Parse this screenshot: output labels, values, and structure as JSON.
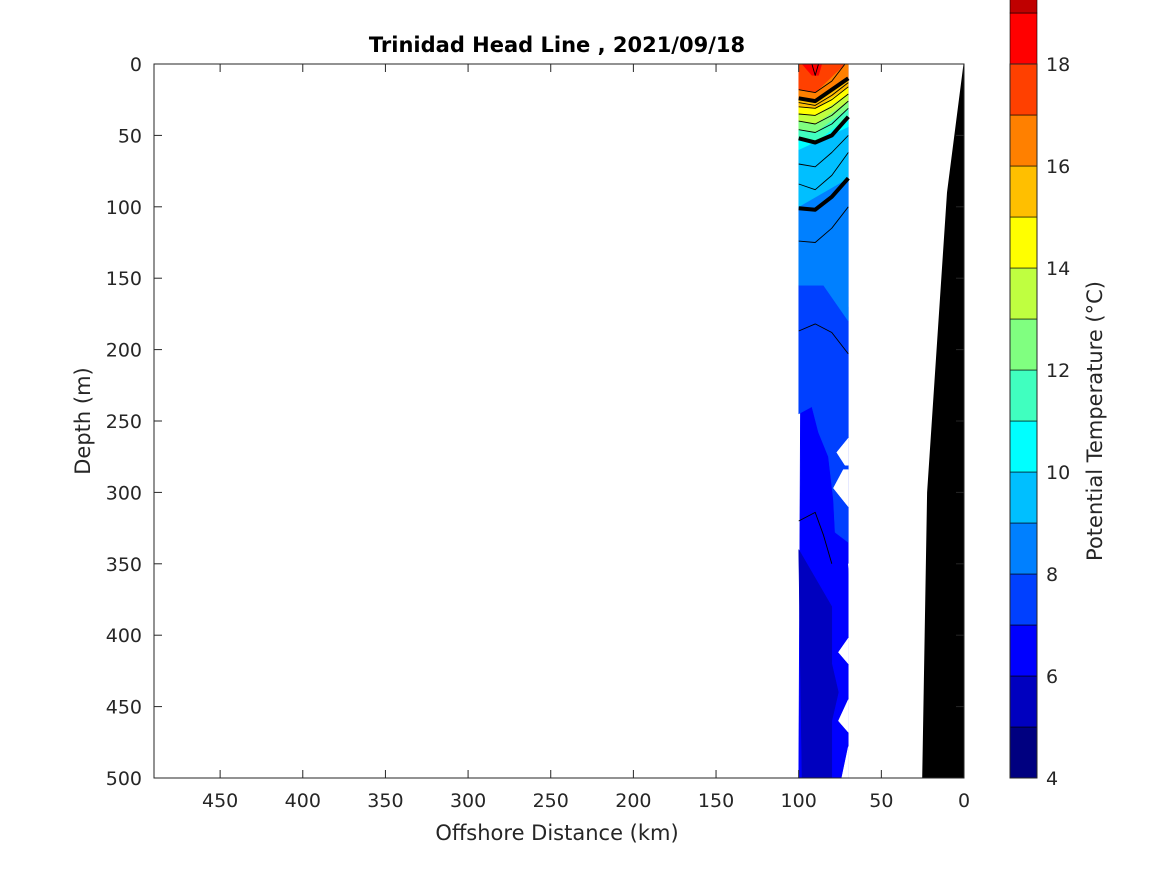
{
  "chart_data": {
    "type": "contour",
    "title": "Trinidad Head Line , 2021/09/18",
    "xlabel": "Offshore Distance (km)",
    "ylabel": "Depth (m)",
    "colorbar_label": "Potential Temperature (°C)",
    "xlim": [
      490,
      0
    ],
    "ylim": [
      0,
      500
    ],
    "x_reversed": true,
    "y_reversed": true,
    "x_ticks": [
      "450",
      "400",
      "350",
      "300",
      "250",
      "200",
      "150",
      "100",
      "50",
      "0"
    ],
    "y_ticks": [
      "0",
      "50",
      "100",
      "150",
      "200",
      "250",
      "300",
      "350",
      "400",
      "450",
      "500"
    ],
    "colorbar": {
      "clim": [
        4,
        18
      ],
      "step": 1,
      "ticks": [
        "4",
        "6",
        "8",
        "10",
        "12",
        "14",
        "16",
        "18"
      ],
      "colors": [
        "#000080",
        "#0000bf",
        "#0000ff",
        "#0040ff",
        "#0080ff",
        "#00bfff",
        "#00ffff",
        "#40ffbf",
        "#80ff80",
        "#bfff40",
        "#ffff00",
        "#ffbf00",
        "#ff8000",
        "#ff4000",
        "#ff0000",
        "#bf0000"
      ]
    },
    "layers": [
      {
        "range": [
          6,
          7
        ],
        "color": "#0000ff",
        "boundary": [
          [
            100,
            500
          ],
          [
            98,
            0
          ],
          [
            70,
            0
          ],
          [
            70,
            500
          ]
        ]
      },
      {
        "range": [
          5,
          6
        ],
        "color": "#0000bf",
        "boundary": [
          [
            100,
            340
          ],
          [
            98,
            500
          ],
          [
            80,
            500
          ],
          [
            80,
            460
          ],
          [
            76,
            440
          ],
          [
            80,
            420
          ],
          [
            80,
            380
          ]
        ]
      },
      {
        "range": [
          7,
          8
        ],
        "color": "#0040ff",
        "boundary": [
          [
            100,
            245
          ],
          [
            92,
            240
          ],
          [
            88,
            258
          ],
          [
            82,
            275
          ],
          [
            79,
            305
          ],
          [
            78,
            328
          ],
          [
            70,
            335
          ],
          [
            70,
            170
          ],
          [
            85,
            155
          ],
          [
            100,
            155
          ]
        ]
      },
      {
        "range": [
          8,
          9
        ],
        "color": "#0080ff",
        "boundary": [
          [
            100,
            155
          ],
          [
            100,
            100
          ],
          [
            70,
            80
          ],
          [
            70,
            180
          ],
          [
            85,
            155
          ]
        ]
      },
      {
        "range": [
          9,
          10
        ],
        "color": "#00bfff",
        "boundary": [
          [
            100,
            100
          ],
          [
            100,
            60
          ],
          [
            70,
            44
          ],
          [
            70,
            80
          ]
        ]
      },
      {
        "range": [
          10,
          11
        ],
        "color": "#00ffff",
        "boundary": [
          [
            100,
            60
          ],
          [
            100,
            52
          ],
          [
            90,
            55
          ],
          [
            70,
            37
          ],
          [
            70,
            44
          ]
        ]
      },
      {
        "range": [
          11,
          12
        ],
        "color": "#40ffbf",
        "boundary": [
          [
            100,
            52
          ],
          [
            100,
            46
          ],
          [
            90,
            48
          ],
          [
            70,
            31
          ],
          [
            70,
            37
          ],
          [
            90,
            55
          ]
        ]
      },
      {
        "range": [
          12,
          13
        ],
        "color": "#80ff80",
        "boundary": [
          [
            100,
            46
          ],
          [
            100,
            40
          ],
          [
            90,
            42
          ],
          [
            70,
            26
          ],
          [
            70,
            31
          ],
          [
            90,
            48
          ]
        ]
      },
      {
        "range": [
          13,
          14
        ],
        "color": "#bfff40",
        "boundary": [
          [
            100,
            40
          ],
          [
            100,
            35
          ],
          [
            90,
            36
          ],
          [
            70,
            21
          ],
          [
            70,
            26
          ],
          [
            90,
            42
          ]
        ]
      },
      {
        "range": [
          14,
          15
        ],
        "color": "#ffff00",
        "boundary": [
          [
            100,
            35
          ],
          [
            100,
            30
          ],
          [
            90,
            31
          ],
          [
            70,
            16
          ],
          [
            70,
            21
          ],
          [
            90,
            36
          ]
        ]
      },
      {
        "range": [
          15,
          16
        ],
        "color": "#ffbf00",
        "boundary": [
          [
            100,
            30
          ],
          [
            100,
            24
          ],
          [
            90,
            26
          ],
          [
            70,
            10
          ],
          [
            70,
            16
          ],
          [
            90,
            31
          ]
        ]
      },
      {
        "range": [
          16,
          17
        ],
        "color": "#ff8000",
        "boundary": [
          [
            100,
            24
          ],
          [
            100,
            18
          ],
          [
            90,
            20
          ],
          [
            72,
            0
          ],
          [
            70,
            0
          ],
          [
            70,
            10
          ],
          [
            90,
            26
          ]
        ]
      },
      {
        "range": [
          17,
          18
        ],
        "color": "#ff4000",
        "boundary": [
          [
            100,
            18
          ],
          [
            100,
            0
          ],
          [
            72,
            0
          ],
          [
            90,
            20
          ]
        ]
      },
      {
        "range": [
          17,
          18
        ],
        "color": "#ff0000",
        "boundary": [
          [
            98,
            0
          ],
          [
            92,
            8
          ],
          [
            88,
            8
          ],
          [
            86,
            0
          ]
        ]
      }
    ],
    "no_data_cutouts": [
      [
        [
          70,
          262
        ],
        [
          77,
          272
        ],
        [
          72,
          281
        ],
        [
          70,
          281
        ]
      ],
      [
        [
          70,
          284
        ],
        [
          73,
          284
        ],
        [
          79,
          297
        ],
        [
          70,
          310
        ]
      ],
      [
        [
          70,
          350
        ],
        [
          66,
          352
        ],
        [
          66,
          402
        ]
      ],
      [
        [
          70,
          402
        ],
        [
          76,
          412
        ],
        [
          70,
          420
        ]
      ],
      [
        [
          70,
          445
        ],
        [
          76,
          460
        ],
        [
          70,
          468
        ]
      ],
      [
        [
          70,
          478
        ],
        [
          74,
          500
        ],
        [
          70,
          500
        ]
      ]
    ],
    "contour_lines": [
      {
        "level": 8,
        "bold": true,
        "points": [
          [
            100,
            101
          ],
          [
            90,
            102
          ],
          [
            80,
            93
          ],
          [
            70,
            80
          ]
        ]
      },
      {
        "level": 10,
        "bold": true,
        "points": [
          [
            100,
            52
          ],
          [
            90,
            55
          ],
          [
            80,
            50
          ],
          [
            70,
            37
          ]
        ]
      },
      {
        "level": 16,
        "bold": true,
        "points": [
          [
            100,
            24
          ],
          [
            90,
            26
          ],
          [
            80,
            18
          ],
          [
            70,
            10
          ]
        ]
      },
      {
        "level": 6,
        "bold": false,
        "points": [
          [
            100,
            320
          ],
          [
            90,
            314
          ],
          [
            85,
            330
          ],
          [
            80,
            350
          ]
        ]
      },
      {
        "level": 7,
        "bold": false,
        "points": [
          [
            100,
            187
          ],
          [
            90,
            182
          ],
          [
            80,
            188
          ],
          [
            70,
            203
          ]
        ]
      },
      {
        "level": 8.5,
        "bold": false,
        "points": [
          [
            100,
            124
          ],
          [
            90,
            125
          ],
          [
            80,
            115
          ],
          [
            70,
            100
          ]
        ]
      },
      {
        "level": 9,
        "bold": false,
        "points": [
          [
            100,
            84
          ],
          [
            90,
            88
          ],
          [
            80,
            78
          ],
          [
            70,
            62
          ]
        ]
      },
      {
        "level": 9.5,
        "bold": false,
        "points": [
          [
            100,
            70
          ],
          [
            90,
            72
          ],
          [
            80,
            62
          ],
          [
            70,
            50
          ]
        ]
      },
      {
        "level": 11,
        "bold": false,
        "points": [
          [
            100,
            46
          ],
          [
            90,
            48
          ],
          [
            80,
            42
          ],
          [
            70,
            31
          ]
        ]
      },
      {
        "level": 12,
        "bold": false,
        "points": [
          [
            100,
            40
          ],
          [
            90,
            42
          ],
          [
            80,
            36
          ],
          [
            70,
            26
          ]
        ]
      },
      {
        "level": 13,
        "bold": false,
        "points": [
          [
            100,
            35
          ],
          [
            90,
            36
          ],
          [
            80,
            30
          ],
          [
            70,
            21
          ]
        ]
      },
      {
        "level": 14,
        "bold": false,
        "points": [
          [
            100,
            30
          ],
          [
            90,
            31
          ],
          [
            80,
            25
          ],
          [
            70,
            16
          ]
        ]
      },
      {
        "level": 15,
        "bold": false,
        "points": [
          [
            100,
            27
          ],
          [
            90,
            29
          ],
          [
            80,
            22
          ],
          [
            70,
            13
          ]
        ]
      },
      {
        "level": 17,
        "bold": false,
        "points": [
          [
            100,
            18
          ],
          [
            90,
            20
          ],
          [
            80,
            12
          ],
          [
            72,
            0
          ]
        ]
      },
      {
        "level": 18,
        "bold": false,
        "points": [
          [
            92,
            0
          ],
          [
            90,
            8
          ],
          [
            88,
            0
          ]
        ]
      }
    ],
    "bathymetry": {
      "color": "#000000",
      "points": [
        [
          0,
          0
        ],
        [
          10,
          90
        ],
        [
          22,
          300
        ],
        [
          25,
          500
        ],
        [
          0,
          500
        ]
      ]
    },
    "grid": false
  }
}
